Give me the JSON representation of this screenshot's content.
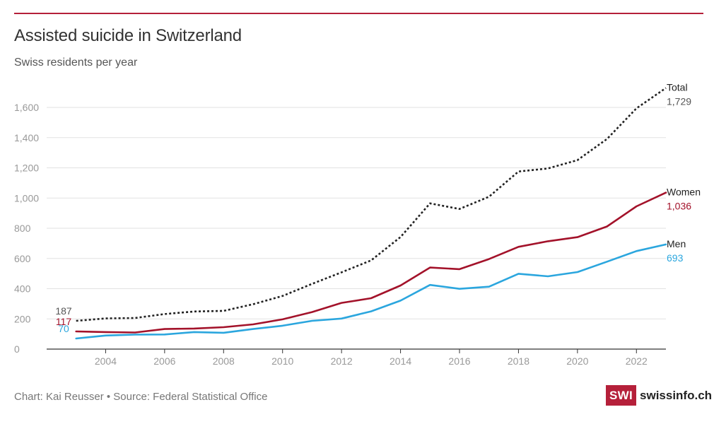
{
  "header": {
    "title": "Assisted suicide in Switzerland",
    "subtitle": "Swiss residents per year"
  },
  "footer": {
    "source": "Chart: Kai Reusser • Source: Federal Statistical Office",
    "logo_box": "SWI",
    "logo_text": "swissinfo.ch"
  },
  "colors": {
    "accent": "#b5203a",
    "total": "#222222",
    "women": "#a3122a",
    "men": "#2ba6de",
    "grid": "#e2e2e2",
    "axis": "#333333",
    "tick_text": "#999999"
  },
  "chart_data": {
    "type": "line",
    "title": "Assisted suicide in Switzerland",
    "subtitle": "Swiss residents per year",
    "xlabel": "",
    "ylabel": "",
    "xlim": [
      2002,
      2023
    ],
    "ylim": [
      0,
      1750
    ],
    "x_ticks": [
      2004,
      2006,
      2008,
      2010,
      2012,
      2014,
      2016,
      2018,
      2020,
      2022
    ],
    "y_ticks": [
      0,
      200,
      400,
      600,
      800,
      1000,
      1200,
      1400,
      1600
    ],
    "y_tick_labels": [
      "0",
      "200",
      "400",
      "600",
      "800",
      "1,000",
      "1,200",
      "1,400",
      "1,600"
    ],
    "x": [
      2003,
      2004,
      2005,
      2006,
      2007,
      2008,
      2009,
      2010,
      2011,
      2012,
      2013,
      2014,
      2015,
      2016,
      2017,
      2018,
      2019,
      2020,
      2021,
      2022,
      2023
    ],
    "series": [
      {
        "name": "Total",
        "style": "dotted",
        "values": [
          187,
          203,
          206,
          232,
          249,
          253,
          297,
          352,
          432,
          508,
          587,
          742,
          965,
          928,
          1009,
          1176,
          1196,
          1251,
          1391,
          1594,
          1729
        ],
        "start_label": "187",
        "end_label": "1,729"
      },
      {
        "name": "Women",
        "style": "solid",
        "values": [
          117,
          113,
          110,
          133,
          136,
          145,
          164,
          197,
          245,
          306,
          337,
          421,
          540,
          529,
          596,
          677,
          714,
          741,
          812,
          945,
          1036
        ],
        "start_label": "117",
        "end_label": "1,036"
      },
      {
        "name": "Men",
        "style": "solid",
        "values": [
          70,
          90,
          96,
          97,
          113,
          108,
          133,
          155,
          187,
          202,
          250,
          321,
          425,
          399,
          413,
          499,
          482,
          510,
          579,
          649,
          693
        ],
        "start_label": "70",
        "end_label": "693"
      }
    ]
  }
}
